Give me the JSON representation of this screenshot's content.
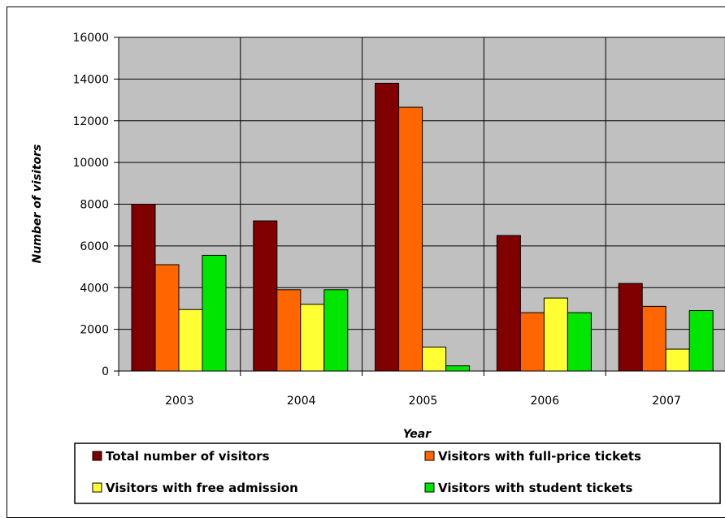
{
  "chart_data": {
    "type": "bar",
    "categories": [
      "2003",
      "2004",
      "2005",
      "2006",
      "2007"
    ],
    "series": [
      {
        "name": "Total number of visitors",
        "color": "#800000",
        "values": [
          8000,
          7200,
          13800,
          6500,
          4200
        ]
      },
      {
        "name": "Visitors with full-price tickets",
        "color": "#ff6600",
        "values": [
          5100,
          3900,
          12650,
          2800,
          3100
        ]
      },
      {
        "name": "Visitors with free admission",
        "color": "#ffff33",
        "values": [
          2950,
          3200,
          1150,
          3500,
          1050
        ]
      },
      {
        "name": "Visitors with student tickets",
        "color": "#00e600",
        "values": [
          5550,
          3900,
          250,
          2800,
          2900
        ]
      }
    ],
    "xlabel": "Year",
    "ylabel": "Number of visitors",
    "ylim": [
      0,
      16000
    ],
    "yticks": [
      "0",
      "2000",
      "4000",
      "6000",
      "8000",
      "10000",
      "12000",
      "14000",
      "16000"
    ],
    "grid": true,
    "plot_background": "#c0c0c0",
    "legend_position": "bottom"
  }
}
